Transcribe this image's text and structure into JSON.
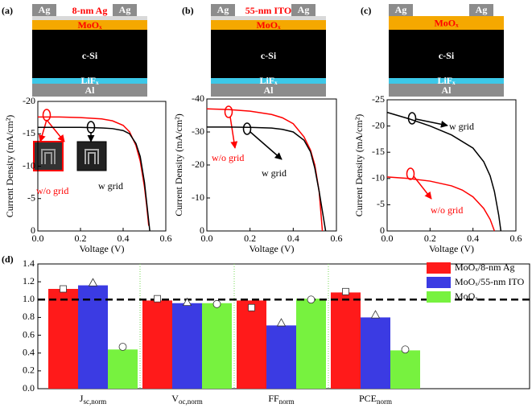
{
  "chart_data": [
    {
      "type": "line",
      "panel_label": "(a)",
      "schematic": {
        "electrodes": [
          "Ag",
          "Ag"
        ],
        "top_layer": "8-nm Ag",
        "layers": [
          "MoOₓ",
          "c-Si",
          "LiFₓ",
          "Al"
        ]
      },
      "x_label": "Voltage (V)",
      "y_label": "Current Density (mA/cm²)",
      "xlim": [
        0,
        0.6
      ],
      "xticks": [
        {
          "value": 0,
          "label": "0.0"
        },
        {
          "value": 0.2,
          "label": "0.2"
        },
        {
          "value": 0.4,
          "label": "0.4"
        },
        {
          "value": 0.6,
          "label": "0.6"
        }
      ],
      "ylim": [
        0,
        -20
      ],
      "yticks": [
        0,
        -5,
        -10,
        -15,
        -20
      ],
      "series": [
        {
          "name": "w/o grid",
          "color": "#ff0000",
          "x": [
            0,
            0.1,
            0.2,
            0.3,
            0.35,
            0.4,
            0.43,
            0.46,
            0.48,
            0.5,
            0.51,
            0.52
          ],
          "values": [
            -17.6,
            -17.6,
            -17.5,
            -17.3,
            -17.0,
            -16.3,
            -15.3,
            -13.2,
            -10.8,
            -6.8,
            -4.0,
            -0.8
          ]
        },
        {
          "name": "w grid",
          "color": "#000000",
          "x": [
            0,
            0.1,
            0.2,
            0.3,
            0.35,
            0.4,
            0.43,
            0.46,
            0.48,
            0.5,
            0.51,
            0.52,
            0.525
          ],
          "values": [
            -16.0,
            -16.0,
            -16.0,
            -15.9,
            -15.8,
            -15.5,
            -15.0,
            -13.5,
            -11.5,
            -7.5,
            -4.5,
            -1.5,
            0
          ]
        }
      ]
    },
    {
      "type": "line",
      "panel_label": "(b)",
      "schematic": {
        "electrodes": [
          "Ag",
          "Ag"
        ],
        "top_layer": "55-nm ITO",
        "layers": [
          "MoOₓ",
          "c-Si",
          "LiFₓ",
          "Al"
        ]
      },
      "x_label": "Voltage (V)",
      "y_label": "Current Density (mA/cm²)",
      "xlim": [
        0,
        0.6
      ],
      "xticks": [
        {
          "value": 0,
          "label": "0.0"
        },
        {
          "value": 0.2,
          "label": "0.2"
        },
        {
          "value": 0.4,
          "label": "0.4"
        },
        {
          "value": 0.6,
          "label": "0.6"
        }
      ],
      "ylim": [
        0,
        -40
      ],
      "yticks": [
        0,
        -10,
        -20,
        -30,
        -40
      ],
      "series": [
        {
          "name": "w/o grid",
          "color": "#ff0000",
          "x": [
            0,
            0.1,
            0.2,
            0.3,
            0.35,
            0.4,
            0.45,
            0.48,
            0.5,
            0.52,
            0.535
          ],
          "values": [
            -37.0,
            -36.8,
            -36.3,
            -35.3,
            -34.3,
            -32.5,
            -28.5,
            -24.5,
            -20.0,
            -12.0,
            0
          ]
        },
        {
          "name": "w grid",
          "color": "#000000",
          "x": [
            0,
            0.1,
            0.2,
            0.3,
            0.35,
            0.4,
            0.45,
            0.48,
            0.5,
            0.52,
            0.54,
            0.55
          ],
          "values": [
            -31.5,
            -31.5,
            -31.4,
            -31.2,
            -30.8,
            -30.0,
            -27.5,
            -24.0,
            -19.0,
            -12.0,
            -4.0,
            0
          ]
        }
      ]
    },
    {
      "type": "line",
      "panel_label": "(c)",
      "schematic": {
        "electrodes": [
          "Ag",
          "Ag"
        ],
        "layers": [
          "MoOₓ",
          "c-Si",
          "LiFₓ",
          "Al"
        ]
      },
      "x_label": "Voltage (V)",
      "y_label": "Current Density (mA/cm²)",
      "xlim": [
        0,
        0.6
      ],
      "xticks": [
        {
          "value": 0,
          "label": "0.0"
        },
        {
          "value": 0.2,
          "label": "0.2"
        },
        {
          "value": 0.4,
          "label": "0.4"
        },
        {
          "value": 0.6,
          "label": "0.6"
        }
      ],
      "ylim": [
        0,
        -25
      ],
      "yticks": [
        0,
        -5,
        -10,
        -15,
        -20,
        -25
      ],
      "series": [
        {
          "name": "w/o grid",
          "color": "#ff0000",
          "x": [
            0,
            0.1,
            0.2,
            0.3,
            0.35,
            0.4,
            0.45,
            0.48,
            0.5
          ],
          "values": [
            -10.3,
            -10.0,
            -9.5,
            -8.6,
            -7.8,
            -6.5,
            -4.3,
            -2.2,
            0
          ]
        },
        {
          "name": "w grid",
          "color": "#000000",
          "x": [
            0,
            0.1,
            0.2,
            0.3,
            0.4,
            0.45,
            0.48,
            0.5,
            0.52,
            0.53
          ],
          "values": [
            -22.6,
            -21.4,
            -20.0,
            -18.3,
            -15.8,
            -13.2,
            -10.5,
            -7.5,
            -3.0,
            0
          ]
        }
      ]
    },
    {
      "type": "bar",
      "panel_label": "(d)",
      "categories": [
        "J",
        "V",
        "FF",
        "PCE"
      ],
      "category_subscripts": [
        "sc,norm",
        "oc,norm",
        "norm",
        "norm"
      ],
      "ylim": [
        0,
        1.4
      ],
      "yticks": [
        {
          "value": 0,
          "label": "0.0"
        },
        {
          "value": 0.2,
          "label": "0.2"
        },
        {
          "value": 0.4,
          "label": "0.4"
        },
        {
          "value": 0.6,
          "label": "0.6"
        },
        {
          "value": 0.8,
          "label": "0.8"
        },
        {
          "value": 1,
          "label": "1.0"
        },
        {
          "value": 1.2,
          "label": "1.2"
        },
        {
          "value": 1.4,
          "label": "1.4"
        }
      ],
      "reference_line": 1,
      "legend": "upper right",
      "series": [
        {
          "name": "MoOₓ/8-nm Ag",
          "color": "#ff1a1a",
          "values": [
            1.12,
            0.99,
            0.99,
            1.08
          ],
          "marker": "square",
          "marker_values": [
            1.12,
            1.01,
            0.91,
            1.09
          ]
        },
        {
          "name": "MoOₓ/55-nm ITO",
          "color": "#3b3be3",
          "values": [
            1.16,
            0.96,
            0.71,
            0.8
          ],
          "marker": "triangle",
          "marker_values": [
            1.19,
            0.97,
            0.74,
            0.83
          ]
        },
        {
          "name": "MoOₓ",
          "color": "#77f23f",
          "values": [
            0.44,
            0.96,
            1.01,
            0.43
          ],
          "marker": "circle",
          "marker_values": [
            0.47,
            0.95,
            1.0,
            0.44
          ]
        }
      ]
    }
  ]
}
